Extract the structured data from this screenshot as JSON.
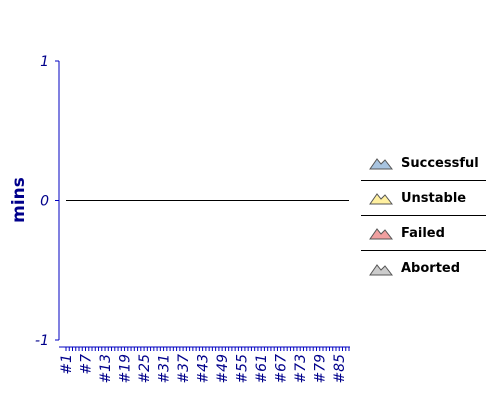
{
  "chart_data": {
    "type": "area",
    "title": "",
    "xlabel": "",
    "ylabel": "mins",
    "ylim": [
      -1,
      1
    ],
    "y_ticks": [
      "1",
      "0",
      "-1"
    ],
    "x_range": [
      1,
      88
    ],
    "x_tick_labels": [
      "#1",
      "#7",
      "#13",
      "#19",
      "#25",
      "#31",
      "#37",
      "#43",
      "#49",
      "#55",
      "#61",
      "#67",
      "#73",
      "#79",
      "#85"
    ],
    "series": [
      {
        "name": "Successful",
        "values": []
      },
      {
        "name": "Unstable",
        "values": []
      },
      {
        "name": "Failed",
        "values": []
      },
      {
        "name": "Aborted",
        "values": []
      }
    ],
    "zero_line": 0,
    "legend_position": "right",
    "grid": false,
    "colors": {
      "axis": "#0000c0",
      "tick_text": "#00008b",
      "ylabel": "#00008b",
      "zero_line": "#000000",
      "Successful": "#a8c4e0",
      "Unstable": "#fff0a0",
      "Failed": "#f0a0a0",
      "Aborted": "#cccccc"
    }
  },
  "legend": {
    "items": [
      {
        "label": "Successful",
        "icon": "mountain-icon"
      },
      {
        "label": "Unstable",
        "icon": "mountain-icon"
      },
      {
        "label": "Failed",
        "icon": "mountain-icon"
      },
      {
        "label": "Aborted",
        "icon": "mountain-icon"
      }
    ]
  }
}
